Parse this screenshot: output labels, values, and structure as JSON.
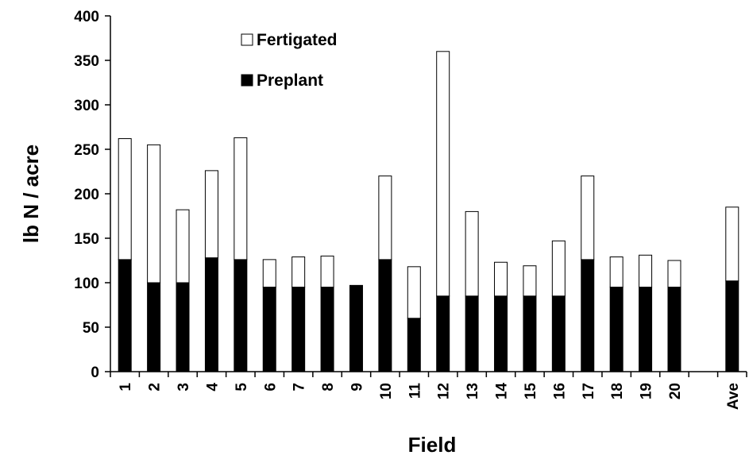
{
  "chart_data": {
    "type": "bar",
    "stacked": true,
    "title": "",
    "xlabel": "Field",
    "ylabel": "lb N / acre",
    "ylim": [
      0,
      400
    ],
    "yticks": [
      0,
      50,
      100,
      150,
      200,
      250,
      300,
      350,
      400
    ],
    "categories": [
      "1",
      "2",
      "3",
      "4",
      "5",
      "6",
      "7",
      "8",
      "9",
      "10",
      "11",
      "12",
      "13",
      "14",
      "15",
      "16",
      "17",
      "18",
      "19",
      "20",
      "",
      "Ave"
    ],
    "series": [
      {
        "name": "Preplant",
        "color": "#000000",
        "values": [
          126,
          100,
          100,
          128,
          126,
          95,
          95,
          95,
          97,
          126,
          60,
          85,
          85,
          85,
          85,
          85,
          126,
          95,
          95,
          95,
          null,
          102
        ]
      },
      {
        "name": "Fertigated",
        "color": "#ffffff",
        "values": [
          136,
          155,
          82,
          98,
          137,
          31,
          34,
          35,
          0,
          94,
          58,
          275,
          95,
          38,
          34,
          62,
          94,
          34,
          36,
          30,
          null,
          83
        ]
      }
    ],
    "legend": {
      "position": "top-left-inside",
      "order": [
        "Fertigated",
        "Preplant"
      ]
    },
    "grid": false
  }
}
